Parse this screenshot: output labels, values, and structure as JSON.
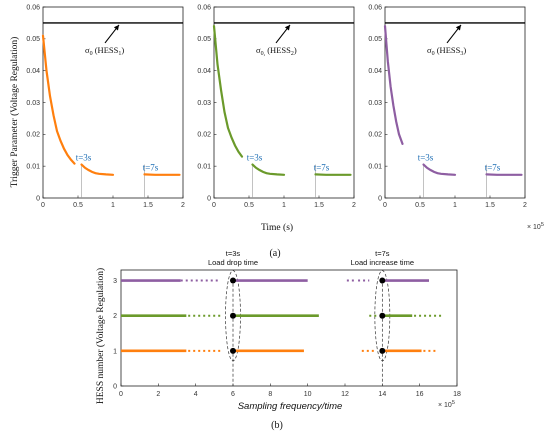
{
  "panel_a_label": "(a)",
  "panel_b_label": "(b)",
  "chart_data": [
    {
      "type": "line",
      "panel": "a",
      "ylabel": "Trigger Parameter (Voltage Regulation)",
      "xlabel": "Time (s)",
      "x_exponent_label": "× 10",
      "x_exponent_power": "5",
      "xticks": [
        0,
        0.5,
        1,
        1.5,
        2
      ],
      "yticks": [
        0,
        0.01,
        0.02,
        0.03,
        0.04,
        0.05,
        0.06
      ],
      "xlim": [
        0,
        2
      ],
      "ylim": [
        0,
        0.06
      ],
      "threshold": 0.055,
      "subplots": [
        {
          "color": "#ff7f0e",
          "annotation_sigma": "σ",
          "annotation_sub": "0",
          "annotation_text": " (HESS",
          "annotation_idx": "1",
          "annotation_close": ")",
          "event_labels": [
            "t=3s",
            "t=7s"
          ],
          "segments": [
            {
              "x": [
                0,
                0.05,
                0.1,
                0.15,
                0.2,
                0.25,
                0.3,
                0.35,
                0.4,
                0.45
              ],
              "y": [
                0.051,
                0.04,
                0.032,
                0.026,
                0.021,
                0.018,
                0.0155,
                0.0135,
                0.012,
                0.0108
              ]
            },
            {
              "x": [
                0.55,
                0.6,
                0.65,
                0.7,
                0.75,
                0.8,
                0.9,
                1.0
              ],
              "y": [
                0.0105,
                0.0095,
                0.0088,
                0.0082,
                0.0078,
                0.0076,
                0.0074,
                0.0073
              ]
            },
            {
              "x": [
                1.45,
                1.6,
                1.8,
                1.95
              ],
              "y": [
                0.0074,
                0.0073,
                0.0073,
                0.0073
              ]
            }
          ],
          "markers": [
            0.55,
            1.45
          ]
        },
        {
          "color": "#6b9a2b",
          "annotation_sigma": "σ",
          "annotation_sub": "0,",
          "annotation_text": " (HESS",
          "annotation_idx": "2",
          "annotation_close": ")",
          "event_labels": [
            "t=3s",
            "t=7s"
          ],
          "segments": [
            {
              "x": [
                0,
                0.05,
                0.1,
                0.15,
                0.2,
                0.25,
                0.3,
                0.35,
                0.4
              ],
              "y": [
                0.054,
                0.042,
                0.034,
                0.027,
                0.022,
                0.019,
                0.0165,
                0.0145,
                0.013
              ]
            },
            {
              "x": [
                0.55,
                0.6,
                0.65,
                0.7,
                0.75,
                0.8,
                0.9,
                1.0
              ],
              "y": [
                0.0105,
                0.0095,
                0.0088,
                0.0082,
                0.0078,
                0.0076,
                0.0074,
                0.0073
              ]
            },
            {
              "x": [
                1.45,
                1.6,
                1.8,
                1.95
              ],
              "y": [
                0.0074,
                0.0073,
                0.0073,
                0.0073
              ]
            }
          ],
          "markers": [
            0.55,
            1.45
          ]
        },
        {
          "color": "#8e5ea2",
          "annotation_sigma": "σ",
          "annotation_sub": "0",
          "annotation_text": " (HESS",
          "annotation_idx": "3",
          "annotation_close": ")",
          "event_labels": [
            "t=3s",
            "t=7s"
          ],
          "segments": [
            {
              "x": [
                0,
                0.04,
                0.08,
                0.12,
                0.16,
                0.2,
                0.25
              ],
              "y": [
                0.054,
                0.043,
                0.035,
                0.029,
                0.024,
                0.02,
                0.017
              ]
            },
            {
              "x": [
                0.55,
                0.6,
                0.65,
                0.7,
                0.75,
                0.8,
                0.9,
                1.0
              ],
              "y": [
                0.0105,
                0.0095,
                0.0088,
                0.0082,
                0.0078,
                0.0076,
                0.0074,
                0.0073
              ]
            },
            {
              "x": [
                1.45,
                1.6,
                1.8,
                1.95
              ],
              "y": [
                0.0074,
                0.0073,
                0.0073,
                0.0073
              ]
            }
          ],
          "markers": [
            0.55,
            1.45
          ]
        }
      ]
    },
    {
      "type": "scatter",
      "panel": "b",
      "ylabel": "HESS number (Voltage Regulation)",
      "xlabel": "Sampling frequency/time",
      "x_exponent_label": "× 10",
      "x_exponent_power": "5",
      "xticks": [
        0,
        2,
        4,
        6,
        8,
        10,
        12,
        14,
        16,
        18
      ],
      "yticks": [
        0,
        1,
        2,
        3
      ],
      "xlim": [
        0,
        18
      ],
      "ylim": [
        0,
        3.3
      ],
      "events": [
        {
          "x": 6,
          "label1": "t=3s",
          "label2": "Load drop time"
        },
        {
          "x": 14,
          "label1": "t=7s",
          "label2": "Load increase time"
        }
      ],
      "rows": [
        {
          "hess": 3,
          "color": "#8e5ea2",
          "segments": [
            [
              0,
              3.2
            ],
            [
              3.2,
              5.2,
              "sparse"
            ],
            [
              6,
              10
            ],
            [
              12.1,
              12.6,
              "sparse"
            ],
            [
              12.7,
              13.3,
              "sparse"
            ],
            [
              14,
              16.5
            ]
          ]
        },
        {
          "hess": 2,
          "color": "#6b9a2b",
          "segments": [
            [
              0,
              3.5
            ],
            [
              3.6,
              5.4,
              "sparse"
            ],
            [
              6,
              10.6
            ],
            [
              13.3,
              13.8,
              "sparse"
            ],
            [
              14,
              15.6
            ],
            [
              15.7,
              17.2,
              "sparse"
            ]
          ]
        },
        {
          "hess": 1,
          "color": "#ff7f0e",
          "segments": [
            [
              0,
              3.5
            ],
            [
              3.6,
              5.4,
              "sparse"
            ],
            [
              6,
              9.8
            ],
            [
              12.9,
              13.7,
              "sparse"
            ],
            [
              14,
              16.1
            ],
            [
              16.2,
              17.0,
              "sparse"
            ]
          ]
        }
      ],
      "dots": [
        [
          6,
          3
        ],
        [
          6,
          2
        ],
        [
          6,
          1
        ],
        [
          14,
          3
        ],
        [
          14,
          2
        ],
        [
          14,
          1
        ]
      ]
    }
  ]
}
